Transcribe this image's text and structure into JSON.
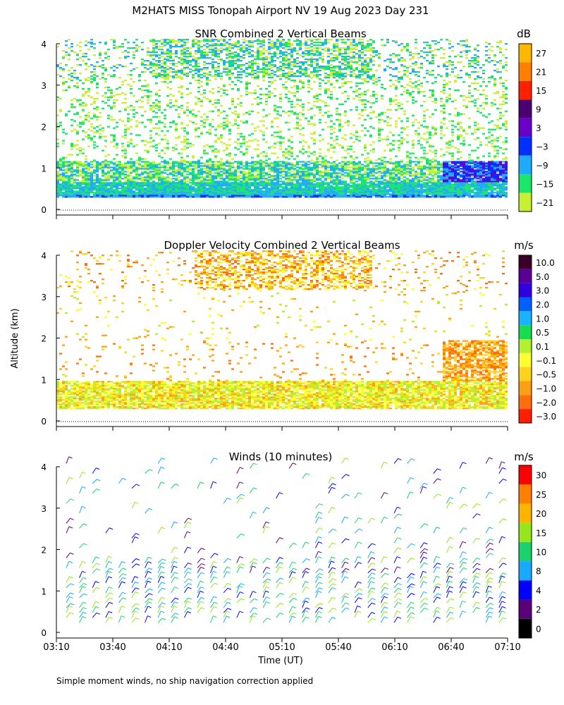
{
  "title": "M2HATS MISS Tonopah Airport NV  19 Aug 2023 Day 231",
  "footnote": "Simple moment winds, no ship navigation correction applied",
  "colors": {
    "axis": "#000000",
    "background": "#ffffff"
  },
  "chart_data": [
    {
      "type": "heatmap",
      "title": "SNR Combined 2 Vertical Beams",
      "ylabel": "",
      "ylim": [
        0,
        4
      ],
      "yticks": [
        "0",
        "1",
        "2",
        "3",
        "4"
      ],
      "colorbar": {
        "unit": "dB",
        "labels": [
          "27",
          "21",
          "15",
          "9",
          "3",
          "−3",
          "−9",
          "−15",
          "−21"
        ],
        "colors": [
          "#ffb800",
          "#ff7f00",
          "#ff2000",
          "#4a0070",
          "#6a00c8",
          "#0030ff",
          "#1eaaff",
          "#19e66a",
          "#c8f032"
        ]
      }
    },
    {
      "type": "heatmap",
      "title": "Doppler Velocity Combined 2 Vertical Beams",
      "ylabel": "Altitude (km)",
      "ylim": [
        0,
        4
      ],
      "yticks": [
        "0",
        "1",
        "2",
        "3",
        "4"
      ],
      "colorbar": {
        "unit": "m/s",
        "labels": [
          "10.0",
          "5.0",
          "3.0",
          "2.0",
          "1.0",
          "0.5",
          "0.1",
          "−0.1",
          "−0.5",
          "−1.0",
          "−2.0",
          "−3.0"
        ],
        "colors": [
          "#3a0028",
          "#5a0096",
          "#3000e0",
          "#0060ff",
          "#19b4ff",
          "#16dc50",
          "#b4f032",
          "#ffff2e",
          "#ffd21e",
          "#ffa014",
          "#ff6e0a",
          "#ff1e00"
        ]
      }
    },
    {
      "type": "scatter",
      "title": "Winds (10 minutes)",
      "xlabel": "Time (UT)",
      "ylim": [
        0,
        4
      ],
      "yticks": [
        "0",
        "1",
        "2",
        "3",
        "4"
      ],
      "x": [
        "03:10",
        "03:40",
        "04:10",
        "04:40",
        "05:10",
        "05:40",
        "06:10",
        "06:40",
        "07:10"
      ],
      "colorbar": {
        "unit": "m/s",
        "labels": [
          "30",
          "25",
          "20",
          "15",
          "10",
          "8",
          "4",
          "2",
          "0"
        ],
        "colors": [
          "#ff0000",
          "#ff8000",
          "#ffb400",
          "#96e61e",
          "#19d26e",
          "#19aaff",
          "#0000ff",
          "#5a0078",
          "#000000"
        ]
      }
    }
  ]
}
